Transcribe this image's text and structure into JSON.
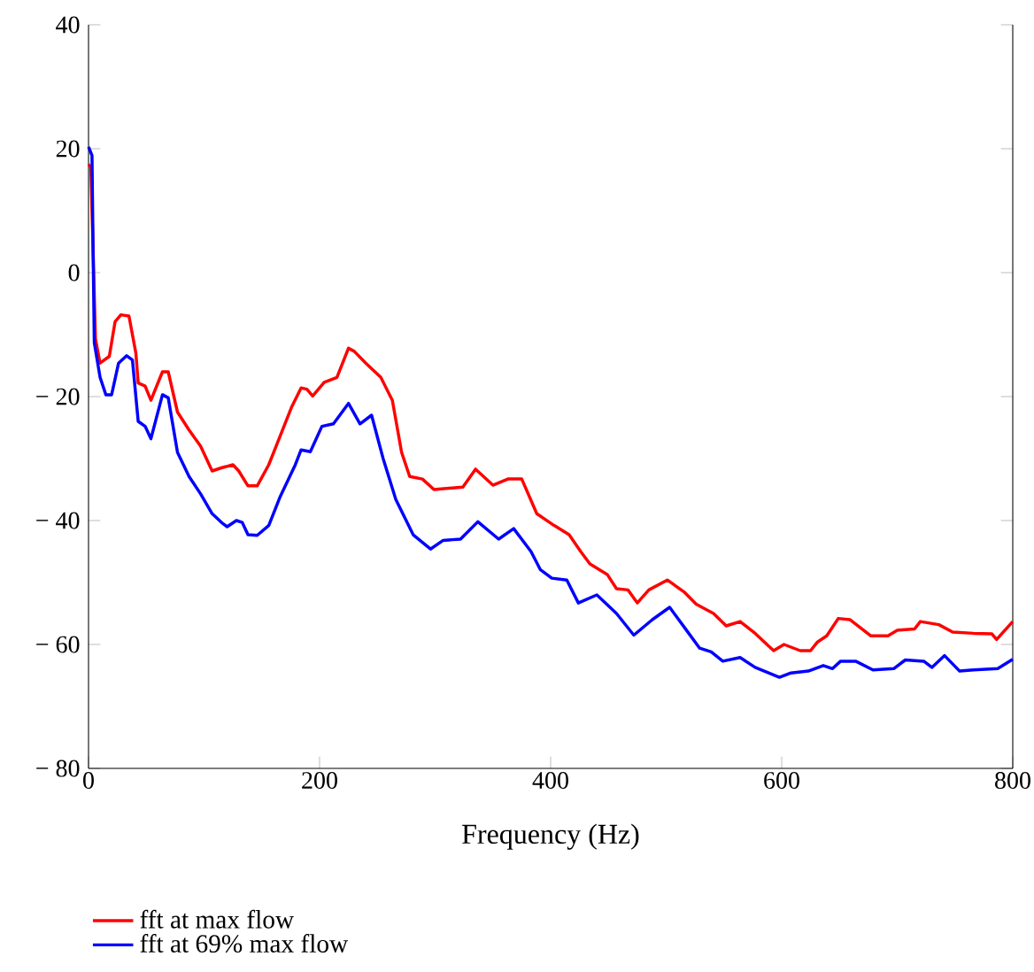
{
  "chart_data": {
    "type": "line",
    "xlabel": "Frequency (Hz)",
    "xlim": [
      0,
      800
    ],
    "ylim": [
      -80,
      40
    ],
    "xticks": [
      0,
      200,
      400,
      600,
      800
    ],
    "yticks": [
      {
        "value": -80,
        "label": "− 80"
      },
      {
        "value": -60,
        "label": "− 60"
      },
      {
        "value": -40,
        "label": "− 40"
      },
      {
        "value": -20,
        "label": "− 20"
      },
      0,
      20,
      40
    ],
    "grid": false,
    "legend": "bottom left",
    "marker": "none",
    "line_style": "solid",
    "series": [
      {
        "name": "fft at max flow",
        "color": "#ff0000",
        "x": [
          0,
          2,
          4,
          6,
          10,
          18,
          23,
          28,
          35,
          41,
          43,
          49,
          54,
          64,
          69,
          77,
          87,
          97,
          107,
          115,
          125,
          130,
          138,
          146,
          156,
          166,
          176,
          184,
          189,
          194,
          204,
          215,
          225,
          230,
          240,
          253,
          263,
          271,
          278,
          289,
          299,
          324,
          335,
          350,
          363,
          375,
          388,
          403,
          416,
          426,
          434,
          449,
          457,
          467,
          475,
          485,
          501,
          516,
          526,
          541,
          552,
          564,
          577,
          593,
          602,
          616,
          625,
          631,
          639,
          649,
          659,
          677,
          692,
          700,
          715,
          720,
          736,
          748,
          766,
          782,
          786,
          800
        ],
        "values": [
          17.5,
          17,
          3.4,
          -10.7,
          -14.6,
          -13.5,
          -7.9,
          -6.8,
          -7,
          -13,
          -17.8,
          -18.3,
          -20.6,
          -16,
          -16,
          -22.5,
          -25.4,
          -28,
          -32,
          -31.5,
          -31,
          -32,
          -34.4,
          -34.4,
          -31,
          -26.3,
          -21.6,
          -18.6,
          -18.8,
          -19.9,
          -17.7,
          -16.9,
          -12.2,
          -12.7,
          -14.6,
          -16.9,
          -20.6,
          -29,
          -32.9,
          -33.3,
          -35,
          -34.6,
          -31.7,
          -34.3,
          -33.3,
          -33.3,
          -38.9,
          -40.8,
          -42.3,
          -45,
          -47,
          -48.7,
          -51,
          -51.2,
          -53.3,
          -51.2,
          -49.6,
          -51.6,
          -53.5,
          -55,
          -57,
          -56.3,
          -58.2,
          -61,
          -60,
          -61,
          -61,
          -59.6,
          -58.6,
          -55.8,
          -56,
          -58.6,
          -58.6,
          -57.7,
          -57.5,
          -56.3,
          -56.8,
          -58,
          -58.2,
          -58.3,
          -59.2,
          -56.3
        ]
      },
      {
        "name": "fft at 69% max flow",
        "color": "#0000ff",
        "x": [
          0,
          3,
          4,
          5,
          10,
          15,
          20,
          26,
          33,
          38,
          43,
          49,
          54,
          64,
          69,
          77,
          87,
          97,
          107,
          115,
          120,
          128,
          133,
          138,
          146,
          156,
          166,
          179,
          184,
          192,
          202,
          212,
          225,
          235,
          245,
          255,
          266,
          281,
          296,
          307,
          322,
          337,
          355,
          368,
          383,
          391,
          401,
          414,
          424,
          440,
          457,
          472,
          488,
          503,
          516,
          529,
          539,
          549,
          564,
          577,
          598,
          608,
          623,
          636,
          644,
          651,
          664,
          679,
          697,
          707,
          723,
          730,
          741,
          754,
          766,
          787,
          800
        ],
        "values": [
          20.3,
          18.9,
          2.8,
          -11.3,
          -16.9,
          -19.7,
          -19.7,
          -14.6,
          -13.4,
          -14.1,
          -24,
          -24.8,
          -26.8,
          -19.7,
          -20.2,
          -29,
          -32.9,
          -35.7,
          -38.9,
          -40.3,
          -41,
          -40,
          -40.3,
          -42.3,
          -42.4,
          -40.8,
          -36.1,
          -31,
          -28.6,
          -28.9,
          -24.8,
          -24.4,
          -21.1,
          -24.4,
          -23,
          -30,
          -36.6,
          -42.3,
          -44.6,
          -43.2,
          -43,
          -40.2,
          -43,
          -41.3,
          -45,
          -47.9,
          -49.3,
          -49.6,
          -53.3,
          -52,
          -55,
          -58.5,
          -56,
          -54,
          -57.3,
          -60.6,
          -61.2,
          -62.7,
          -62.1,
          -63.7,
          -65.3,
          -64.6,
          -64.3,
          -63.4,
          -63.9,
          -62.7,
          -62.7,
          -64.1,
          -63.9,
          -62.5,
          -62.7,
          -63.7,
          -61.8,
          -64.3,
          -64.1,
          -63.9,
          -62.4
        ]
      }
    ]
  }
}
